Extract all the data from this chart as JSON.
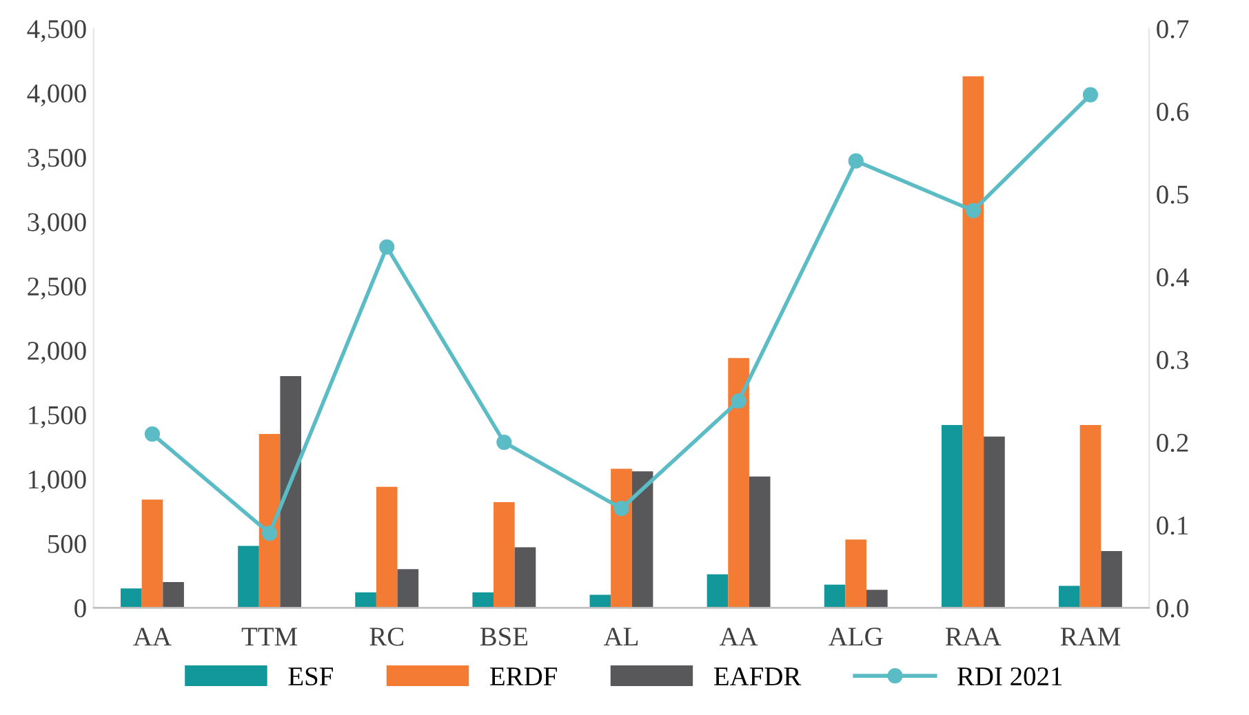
{
  "chart_data": {
    "type": "bar",
    "categories": [
      "AA",
      "TTM",
      "RC",
      "BSE",
      "AL",
      "AA",
      "ALG",
      "RAA",
      "RAM"
    ],
    "series": [
      {
        "name": "ESF",
        "color": "#12979b",
        "values": [
          150,
          480,
          120,
          120,
          100,
          260,
          180,
          1420,
          170
        ]
      },
      {
        "name": "ERDF",
        "color": "#f47b33",
        "values": [
          840,
          1350,
          940,
          820,
          1080,
          1940,
          530,
          4130,
          1420
        ]
      },
      {
        "name": "EAFDR",
        "color": "#58585a",
        "values": [
          200,
          1800,
          300,
          470,
          1060,
          1020,
          140,
          1330,
          440
        ]
      },
      {
        "name": "RDI 2021",
        "type": "line",
        "axis": "y2",
        "color": "#5bbcc6",
        "marker": "circle",
        "values": [
          0.21,
          0.09,
          0.436,
          0.2,
          0.12,
          0.25,
          0.54,
          0.48,
          0.62
        ]
      }
    ],
    "ylim": [
      0,
      4500
    ],
    "yticks": [
      0,
      500,
      {
        "value": 1000,
        "label": "1,000"
      },
      {
        "value": 1500,
        "label": "1,500"
      },
      {
        "value": 2000,
        "label": "2,000"
      },
      {
        "value": 2500,
        "label": "2,500"
      },
      {
        "value": 3000,
        "label": "3,000"
      },
      {
        "value": 3500,
        "label": "3,500"
      },
      {
        "value": 4000,
        "label": "4,000"
      },
      {
        "value": 4500,
        "label": "4,500"
      }
    ],
    "y2lim": [
      0,
      0.7
    ],
    "y2ticks": [
      {
        "value": 0,
        "label": "0.0"
      },
      0.1,
      0.2,
      0.3,
      0.4,
      0.5,
      0.6,
      0.7
    ],
    "grid": false,
    "legend": "bottom"
  }
}
